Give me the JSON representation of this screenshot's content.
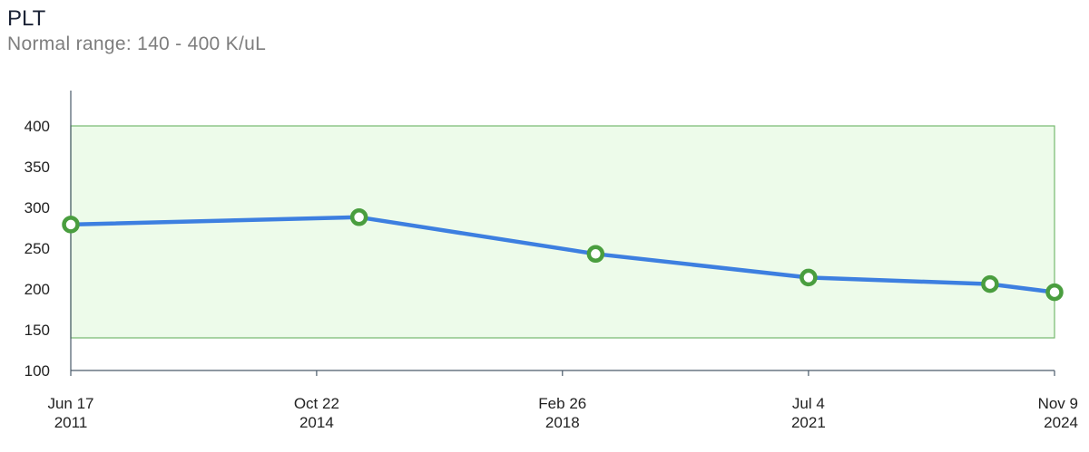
{
  "header": {
    "title": "PLT",
    "subtitle": "Normal range: 140 - 400 K/uL"
  },
  "chart_data": {
    "type": "line",
    "title": "PLT",
    "subtitle": "Normal range: 140 - 400 K/uL",
    "xlabel": "",
    "ylabel": "",
    "ylim": [
      100,
      400
    ],
    "yticks": [
      "100",
      "150",
      "200",
      "250",
      "300",
      "350",
      "400"
    ],
    "xlim": [
      "2011-06-17",
      "2024-11-09"
    ],
    "xticks": [
      {
        "date": "2011-06-17",
        "line1": "Jun 17",
        "line2": "2011"
      },
      {
        "date": "2014-10-22",
        "line1": "Oct 22",
        "line2": "2014"
      },
      {
        "date": "2018-02-26",
        "line1": "Feb 26",
        "line2": "2018"
      },
      {
        "date": "2021-07-04",
        "line1": "Jul 4",
        "line2": "2021"
      },
      {
        "date": "2024-11-09",
        "line1": "Nov 9",
        "line2": "2024"
      }
    ],
    "normal_range": {
      "low": 140,
      "high": 400
    },
    "grid": false,
    "series": [
      {
        "points": [
          {
            "x": "2011-06-17",
            "y": 279
          },
          {
            "x": "2015-05-21",
            "y": 288
          },
          {
            "x": "2018-08-10",
            "y": 243
          },
          {
            "x": "2021-07-04",
            "y": 214
          },
          {
            "x": "2023-12-24",
            "y": 206
          },
          {
            "x": "2024-11-09",
            "y": 196
          }
        ]
      }
    ],
    "colors": {
      "line": "#3d7fe0",
      "marker": "#4a9e3f",
      "band_fill": "#edfbea",
      "band_stroke": "#76b96e",
      "axis": "#4a5a6a"
    }
  }
}
